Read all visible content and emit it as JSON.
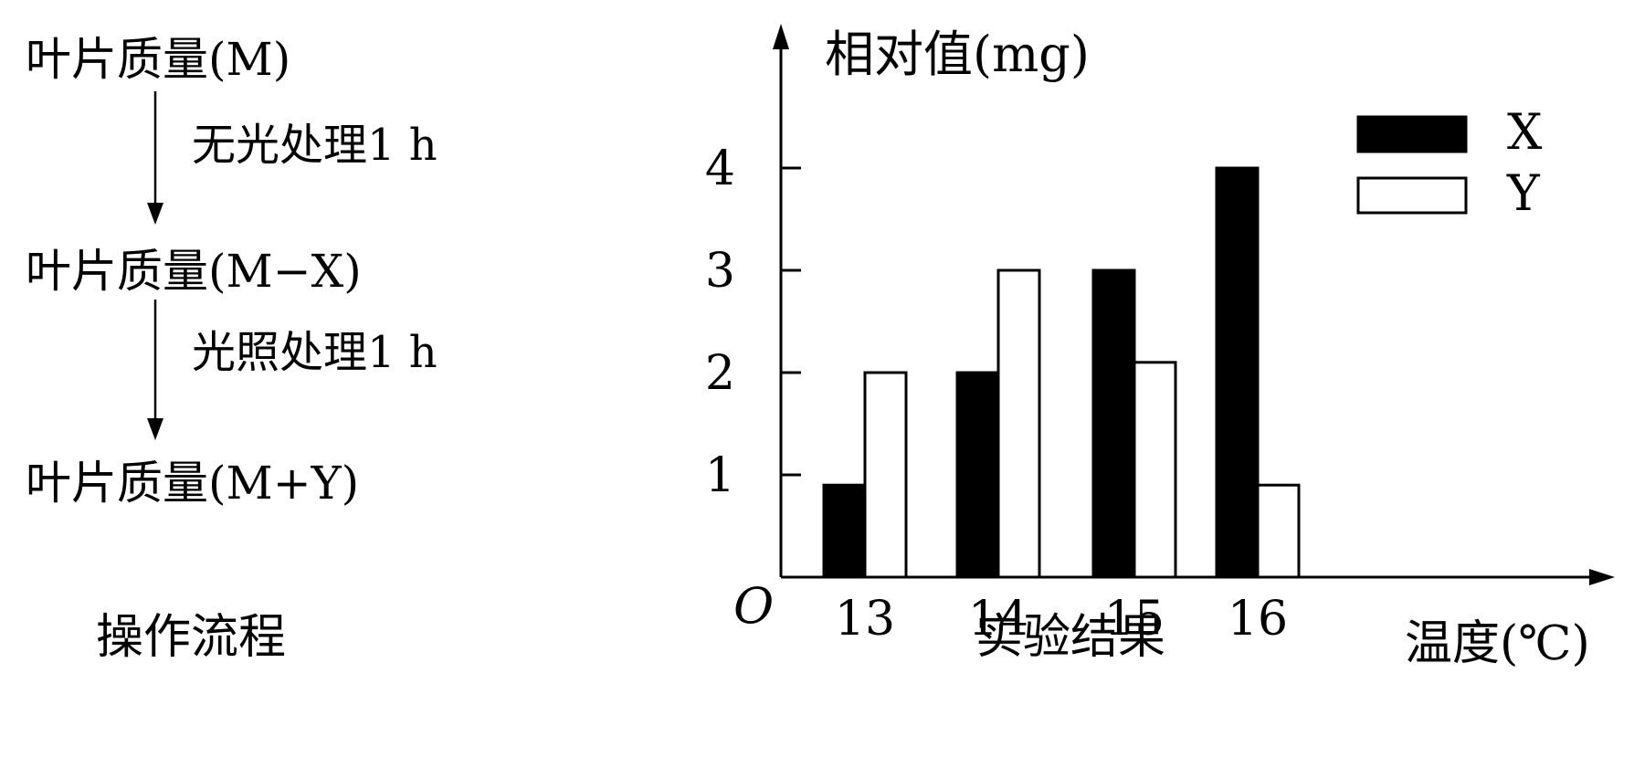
{
  "flow": {
    "state_1": "叶片质量(M)",
    "step_1": "无光处理1 h",
    "state_2": "叶片质量(M−X)",
    "step_2": "光照处理1 h",
    "state_3": "叶片质量(M+Y)",
    "caption": "操作流程"
  },
  "chart_caption": "实验结果",
  "chart_data": {
    "type": "bar",
    "ylabel": "相对值(mg)",
    "xlabel": "温度(℃)",
    "origin_label": "O",
    "categories": [
      "13",
      "14",
      "15",
      "16"
    ],
    "yticks": [
      "1",
      "2",
      "3",
      "4"
    ],
    "ylim": [
      0,
      4.4
    ],
    "legend_position": "top-right",
    "series": [
      {
        "name": "X",
        "fill": "#000000",
        "values": [
          0.9,
          2.0,
          3.0,
          4.0
        ]
      },
      {
        "name": "Y",
        "fill": "#ffffff",
        "values": [
          2.0,
          3.0,
          2.1,
          0.9
        ]
      }
    ]
  }
}
